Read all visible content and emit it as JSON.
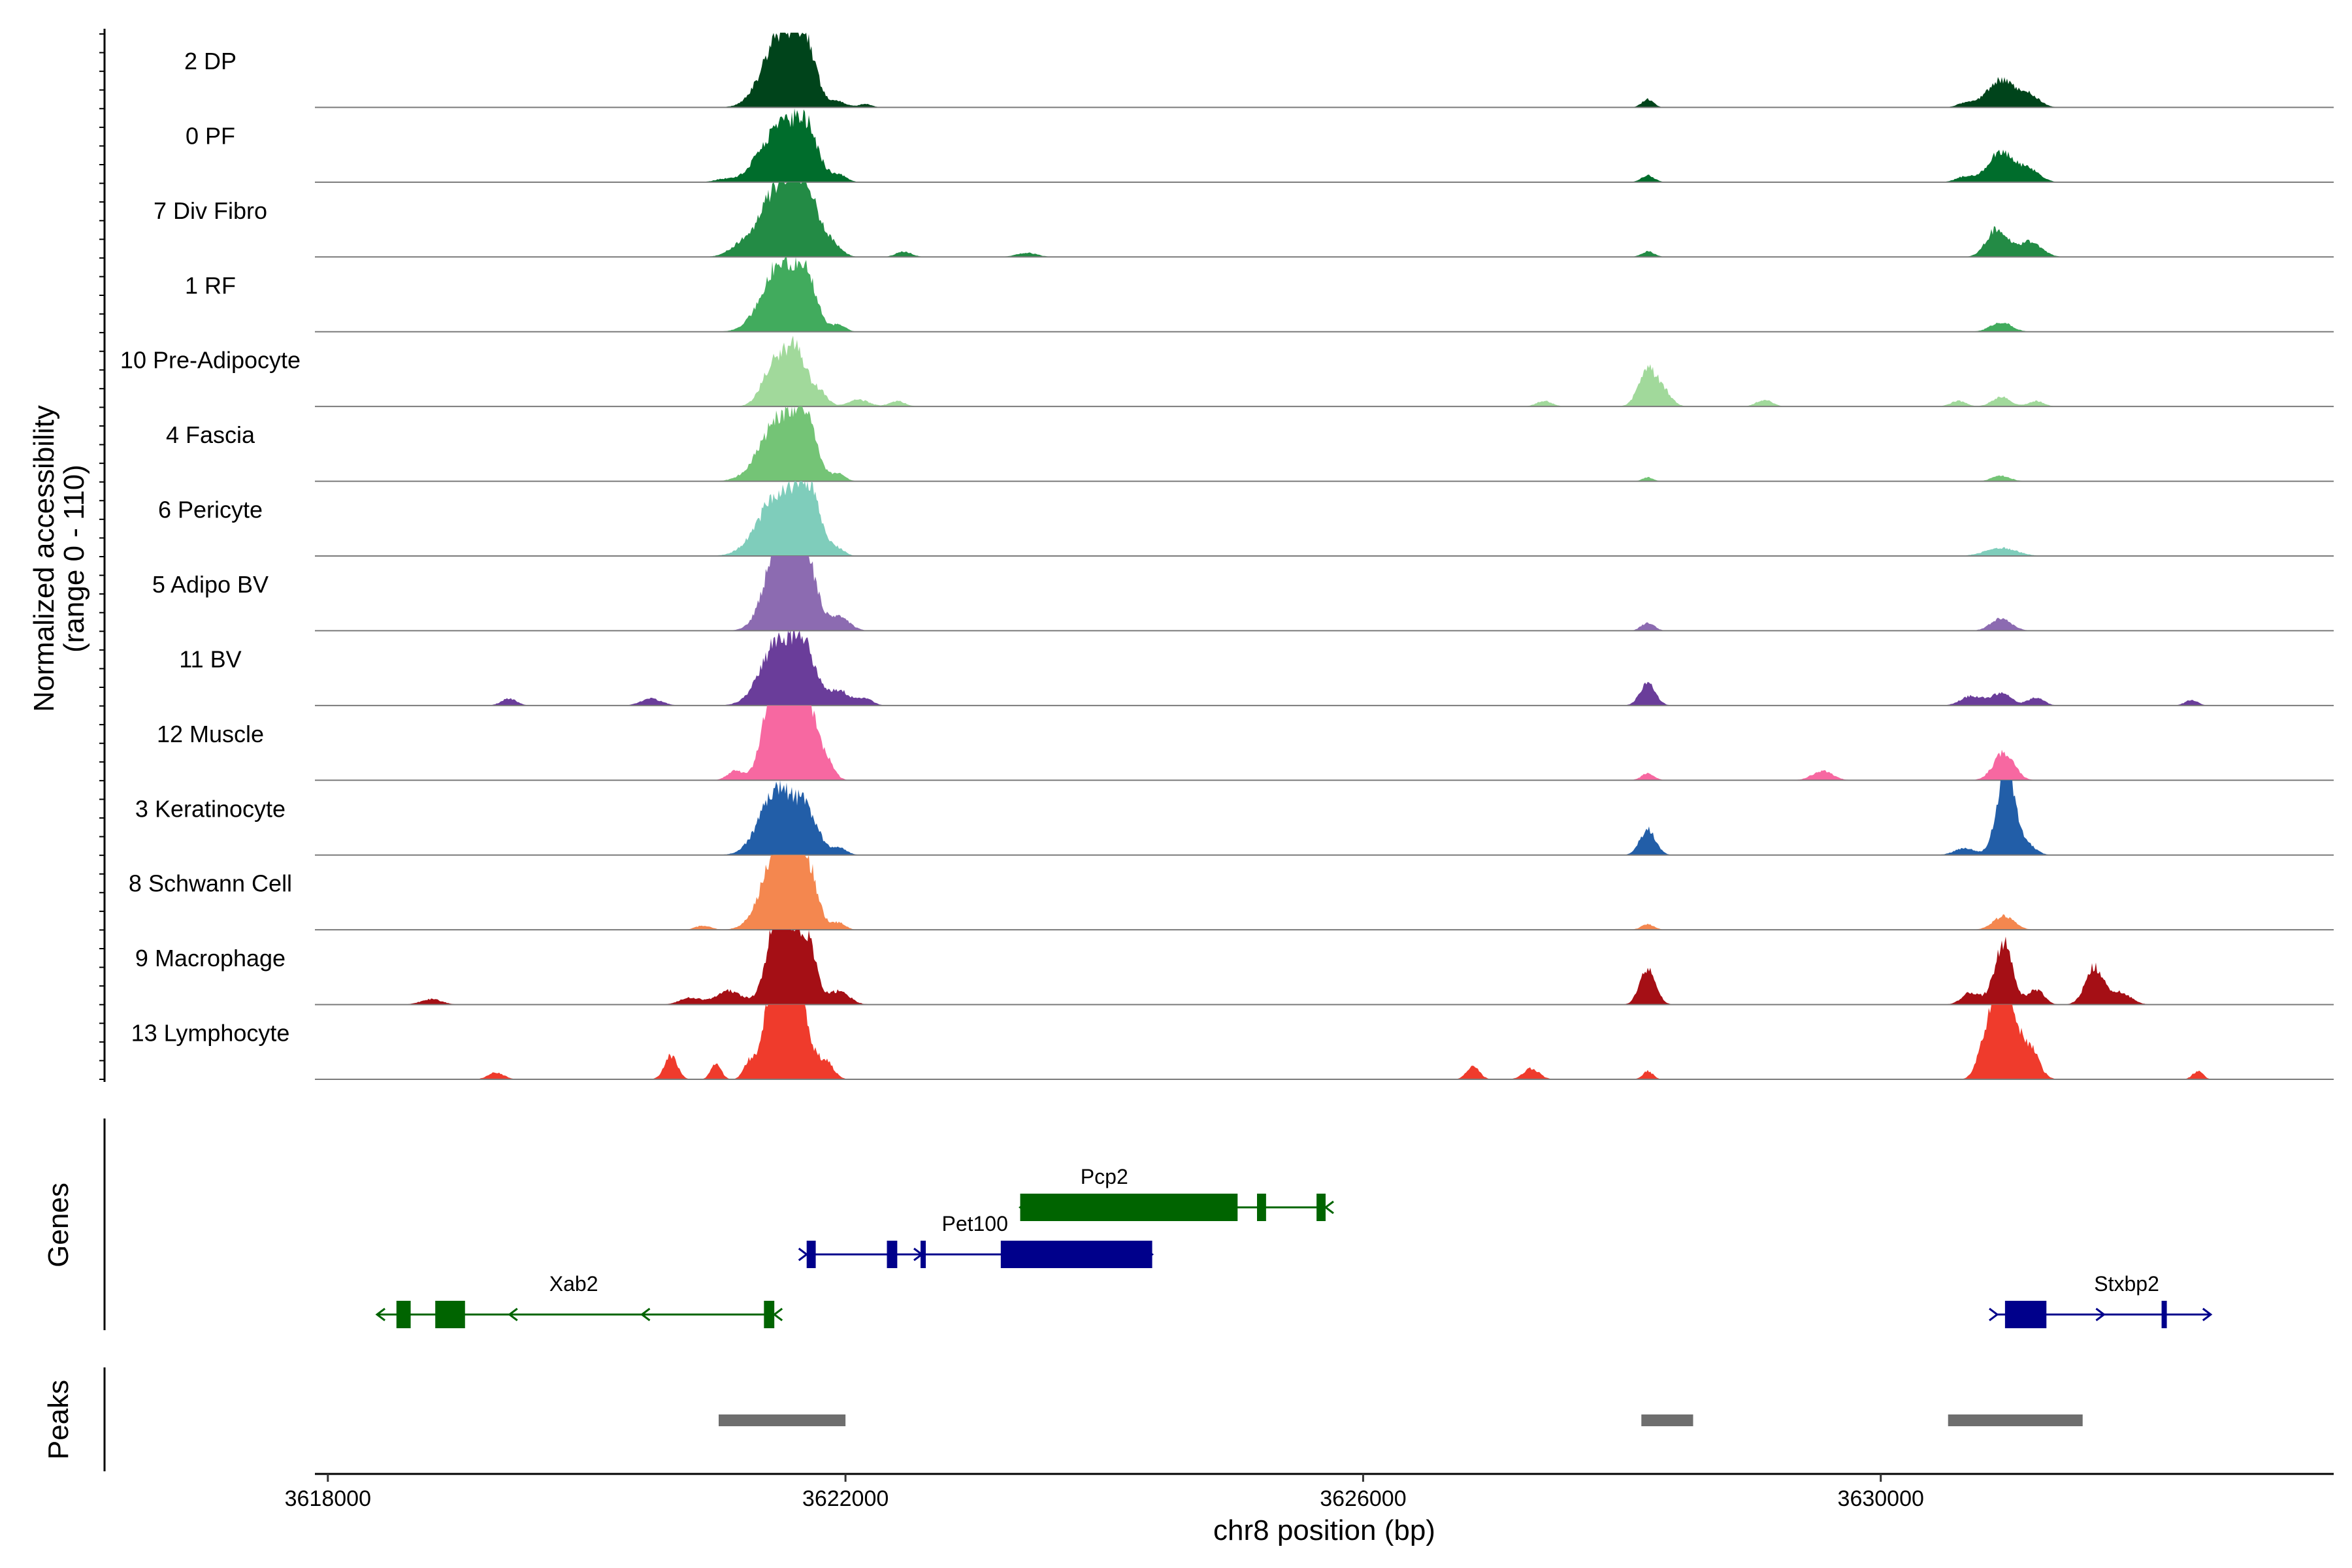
{
  "chart_data": {
    "type": "area",
    "title": "",
    "xlabel": "chr8 position (bp)",
    "ylabel": "Normalized accessibility\n(range 0 - 110)",
    "xlim": [
      3617900,
      3633500
    ],
    "ylim": [
      0,
      110
    ],
    "x_ticks": [
      3618000,
      3622000,
      3626000,
      3630000
    ],
    "x_tick_labels": [
      "3618000",
      "3622000",
      "3626000",
      "3630000"
    ],
    "grid": false,
    "series": [
      {
        "name": "2 DP",
        "color": "#00441b",
        "peaks": [
          [
            3621510,
            110,
            140
          ],
          [
            3621700,
            60,
            80
          ],
          [
            3621950,
            8,
            60
          ],
          [
            3622150,
            5,
            50
          ],
          [
            3628200,
            12,
            45
          ],
          [
            3630930,
            40,
            110
          ],
          [
            3631150,
            16,
            80
          ],
          [
            3630650,
            6,
            60
          ]
        ]
      },
      {
        "name": "0 PF",
        "color": "#006d2c",
        "peaks": [
          [
            3621490,
            80,
            150
          ],
          [
            3621700,
            62,
            90
          ],
          [
            3621950,
            10,
            60
          ],
          [
            3621050,
            4,
            70
          ],
          [
            3628200,
            10,
            50
          ],
          [
            3630930,
            45,
            100
          ],
          [
            3631150,
            18,
            80
          ],
          [
            3630650,
            8,
            70
          ]
        ]
      },
      {
        "name": "7 Div Fibro",
        "color": "#238b45",
        "peaks": [
          [
            3621500,
            110,
            140
          ],
          [
            3621700,
            75,
            90
          ],
          [
            3621900,
            18,
            70
          ],
          [
            3621200,
            15,
            100
          ],
          [
            3622450,
            8,
            60
          ],
          [
            3623400,
            6,
            80
          ],
          [
            3628200,
            8,
            50
          ],
          [
            3630900,
            42,
            80
          ],
          [
            3631150,
            22,
            90
          ]
        ]
      },
      {
        "name": "1 RF",
        "color": "#41ab5d",
        "peaks": [
          [
            3621500,
            100,
            140
          ],
          [
            3621700,
            60,
            80
          ],
          [
            3621950,
            10,
            50
          ],
          [
            3630930,
            14,
            80
          ]
        ]
      },
      {
        "name": "10 Pre-Adipocyte",
        "color": "#a1d99b",
        "peaks": [
          [
            3621450,
            62,
            90
          ],
          [
            3621620,
            80,
            80
          ],
          [
            3621800,
            20,
            60
          ],
          [
            3622100,
            10,
            80
          ],
          [
            3622400,
            8,
            60
          ],
          [
            3628200,
            55,
            70
          ],
          [
            3628330,
            18,
            60
          ],
          [
            3627400,
            8,
            60
          ],
          [
            3629100,
            10,
            60
          ],
          [
            3630600,
            8,
            60
          ],
          [
            3630930,
            14,
            70
          ],
          [
            3631200,
            8,
            60
          ]
        ]
      },
      {
        "name": "4 Fascia",
        "color": "#74c476",
        "peaks": [
          [
            3621500,
            95,
            150
          ],
          [
            3621700,
            65,
            80
          ],
          [
            3621950,
            10,
            50
          ],
          [
            3628200,
            6,
            40
          ],
          [
            3630930,
            8,
            70
          ]
        ]
      },
      {
        "name": "6 Pericyte",
        "color": "#7fcdbb",
        "peaks": [
          [
            3621500,
            95,
            160
          ],
          [
            3621720,
            70,
            90
          ],
          [
            3621950,
            8,
            50
          ],
          [
            3630930,
            12,
            120
          ]
        ]
      },
      {
        "name": "5 Adipo BV",
        "color": "#8c6bb1",
        "peaks": [
          [
            3621520,
            155,
            120
          ],
          [
            3621700,
            80,
            80
          ],
          [
            3621950,
            20,
            80
          ],
          [
            3628200,
            12,
            50
          ],
          [
            3630930,
            18,
            80
          ]
        ]
      },
      {
        "name": "11 BV",
        "color": "#6a3d9a",
        "peaks": [
          [
            3621500,
            100,
            140
          ],
          [
            3621700,
            55,
            80
          ],
          [
            3621950,
            22,
            80
          ],
          [
            3622150,
            10,
            60
          ],
          [
            3619400,
            10,
            60
          ],
          [
            3620500,
            10,
            80
          ],
          [
            3628200,
            32,
            60
          ],
          [
            3630700,
            14,
            80
          ],
          [
            3630930,
            18,
            80
          ],
          [
            3631200,
            12,
            60
          ],
          [
            3632400,
            8,
            50
          ]
        ]
      },
      {
        "name": "12 Muscle",
        "color": "#f768a1",
        "peaks": [
          [
            3621460,
            145,
            90
          ],
          [
            3621660,
            155,
            90
          ],
          [
            3621850,
            25,
            60
          ],
          [
            3621150,
            14,
            60
          ],
          [
            3628200,
            10,
            50
          ],
          [
            3629550,
            14,
            80
          ],
          [
            3630950,
            40,
            80
          ]
        ]
      },
      {
        "name": "3 Keratinocyte",
        "color": "#225ea8",
        "peaks": [
          [
            3621470,
            95,
            130
          ],
          [
            3621700,
            55,
            90
          ],
          [
            3621950,
            10,
            60
          ],
          [
            3628200,
            38,
            60
          ],
          [
            3630650,
            10,
            80
          ],
          [
            3630970,
            130,
            70
          ],
          [
            3631150,
            12,
            60
          ]
        ]
      },
      {
        "name": "8 Schwann Cell",
        "color": "#f4874f",
        "peaks": [
          [
            3621500,
            130,
            130
          ],
          [
            3621700,
            75,
            80
          ],
          [
            3621950,
            10,
            50
          ],
          [
            3620900,
            6,
            60
          ],
          [
            3628200,
            8,
            50
          ],
          [
            3630950,
            20,
            80
          ]
        ]
      },
      {
        "name": "9 Macrophage",
        "color": "#a50f15",
        "peaks": [
          [
            3621500,
            160,
            90
          ],
          [
            3621700,
            95,
            70
          ],
          [
            3621950,
            20,
            80
          ],
          [
            3621100,
            20,
            100
          ],
          [
            3620800,
            10,
            80
          ],
          [
            3618800,
            8,
            80
          ],
          [
            3628200,
            55,
            60
          ],
          [
            3630700,
            18,
            70
          ],
          [
            3630950,
            90,
            70
          ],
          [
            3631200,
            22,
            60
          ],
          [
            3631650,
            55,
            70
          ],
          [
            3631850,
            18,
            80
          ]
        ]
      },
      {
        "name": "13 Lymphocyte",
        "color": "#ef3b2c",
        "peaks": [
          [
            3621500,
            195,
            100
          ],
          [
            3621650,
            80,
            80
          ],
          [
            3621850,
            25,
            60
          ],
          [
            3620650,
            35,
            50
          ],
          [
            3621000,
            22,
            40
          ],
          [
            3621250,
            20,
            40
          ],
          [
            3619300,
            10,
            60
          ],
          [
            3626850,
            18,
            50
          ],
          [
            3627300,
            16,
            60
          ],
          [
            3628200,
            12,
            40
          ],
          [
            3630800,
            40,
            60
          ],
          [
            3630950,
            165,
            80
          ],
          [
            3631150,
            45,
            70
          ],
          [
            3632450,
            12,
            40
          ]
        ]
      }
    ],
    "genes": [
      {
        "name": "Xab2",
        "color": "#006400",
        "row": 2,
        "start": 3618380,
        "end": 3621450,
        "strand": "-",
        "blocks": [
          [
            3618530,
            3618640
          ],
          [
            3618830,
            3619060
          ],
          [
            3621370,
            3621450
          ]
        ]
      },
      {
        "name": "Pet100",
        "color": "#00008b",
        "row": 1,
        "start": 3621700,
        "end": 3624370,
        "strand": "+",
        "blocks": [
          [
            3621700,
            3621770
          ],
          [
            3622320,
            3622400
          ],
          [
            3622580,
            3622590
          ],
          [
            3623200,
            3624370
          ]
        ]
      },
      {
        "name": "Pcp2",
        "color": "#006400",
        "row": 0,
        "start": 3623350,
        "end": 3625710,
        "strand": "-",
        "blocks": [
          [
            3623350,
            3625030
          ],
          [
            3625180,
            3625250
          ],
          [
            3625640,
            3625710
          ]
        ]
      },
      {
        "name": "Stxbp2",
        "color": "#00008b",
        "row": 2,
        "start": 3630900,
        "end": 3632550,
        "strand": "+",
        "blocks": [
          [
            3630960,
            3631280
          ],
          [
            3632170,
            3632210
          ]
        ]
      }
    ],
    "gene_panel_label": "Genes",
    "peaks": [
      [
        3621020,
        3622000
      ],
      [
        3628150,
        3628550
      ],
      [
        3630520,
        3631560
      ]
    ],
    "peaks_panel_label": "Peaks",
    "peak_color": "#6e6e6e"
  }
}
